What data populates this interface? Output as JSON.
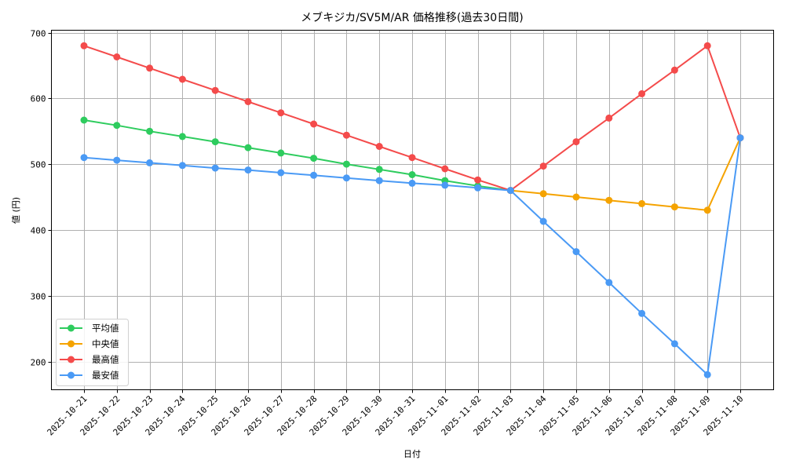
{
  "chart_data": {
    "type": "line",
    "title": "メブキジカ/SV5M/AR 価格推移(過去30日間)",
    "xlabel": "日付",
    "ylabel": "値 (円)",
    "ylim": [
      155,
      705
    ],
    "yticks": [
      200,
      300,
      400,
      500,
      600,
      700
    ],
    "grid": true,
    "legend_position": "lower left",
    "categories": [
      "2025-10-21",
      "2025-10-22",
      "2025-10-23",
      "2025-10-24",
      "2025-10-25",
      "2025-10-26",
      "2025-10-27",
      "2025-10-28",
      "2025-10-29",
      "2025-10-30",
      "2025-10-31",
      "2025-11-01",
      "2025-11-02",
      "2025-11-03",
      "2025-11-04",
      "2025-11-05",
      "2025-11-06",
      "2025-11-07",
      "2025-11-08",
      "2025-11-09",
      "2025-11-10"
    ],
    "series": [
      {
        "name": "平均値",
        "color": "#2ecc5e",
        "values": [
          567,
          559,
          550,
          542,
          534,
          525,
          517,
          509,
          500,
          492,
          484,
          475,
          467,
          460,
          null,
          null,
          null,
          null,
          null,
          null,
          null
        ]
      },
      {
        "name": "中央値",
        "color": "#f5a300",
        "values": [
          null,
          null,
          null,
          null,
          null,
          null,
          null,
          null,
          null,
          null,
          null,
          null,
          null,
          460,
          455,
          450,
          445,
          440,
          435,
          430,
          540
        ]
      },
      {
        "name": "最高値",
        "color": "#f44b4b",
        "values": [
          680,
          663,
          646,
          629,
          612,
          595,
          578,
          561,
          544,
          527,
          510,
          493,
          476,
          460,
          497,
          534,
          570,
          607,
          643,
          680,
          540
        ]
      },
      {
        "name": "最安値",
        "color": "#4a9af5",
        "values": [
          510,
          506,
          502,
          498,
          494,
          491,
          487,
          483,
          479,
          475,
          471,
          468,
          464,
          460,
          413,
          367,
          320,
          273,
          227,
          180,
          540
        ]
      }
    ]
  }
}
